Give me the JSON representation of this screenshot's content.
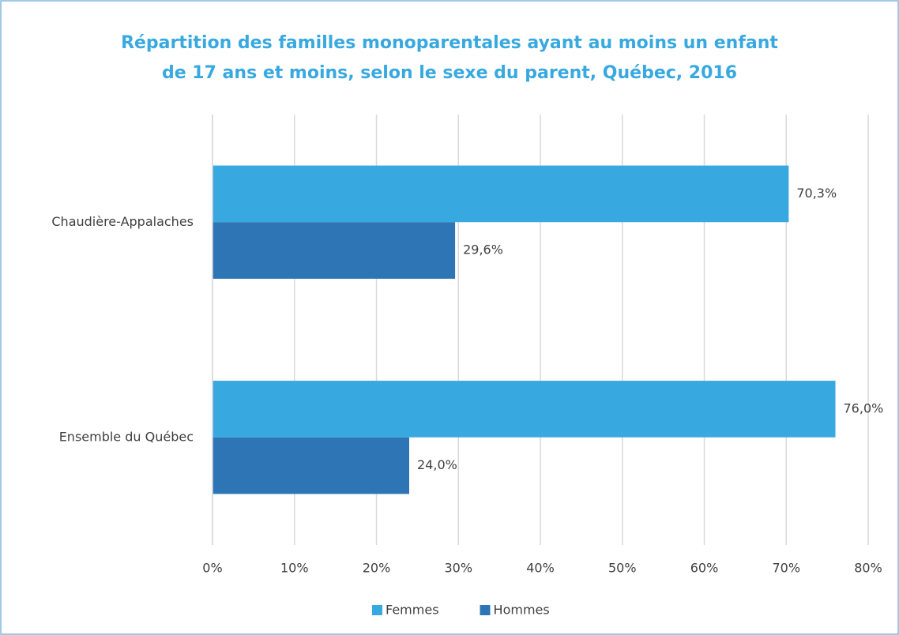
{
  "chart_data": {
    "type": "hbar",
    "title": [
      "Répartition des familles monoparentales ayant au moins un enfant",
      "de 17 ans et moins, selon le sexe du parent, Québec, 2016"
    ],
    "categories": [
      "Chaudière-Appalaches",
      "Ensemble du Québec"
    ],
    "series": [
      {
        "name": "Femmes",
        "color": "#38a9e0",
        "values": [
          70.3,
          76.0
        ],
        "value_labels": [
          "70,3%",
          "76,0%"
        ]
      },
      {
        "name": "Hommes",
        "color": "#2e75b6",
        "values": [
          29.6,
          24.0
        ],
        "value_labels": [
          "29,6%",
          "24,0%"
        ]
      }
    ],
    "xlim": [
      0,
      80
    ],
    "xticks": [
      {
        "value": 0,
        "label": "0%"
      },
      {
        "value": 10,
        "label": "10%"
      },
      {
        "value": 20,
        "label": "20%"
      },
      {
        "value": 30,
        "label": "30%"
      },
      {
        "value": 40,
        "label": "40%"
      },
      {
        "value": 50,
        "label": "50%"
      },
      {
        "value": 60,
        "label": "60%"
      },
      {
        "value": 70,
        "label": "70%"
      },
      {
        "value": 80,
        "label": "80%"
      }
    ],
    "grid": true,
    "legend": "bottom"
  }
}
